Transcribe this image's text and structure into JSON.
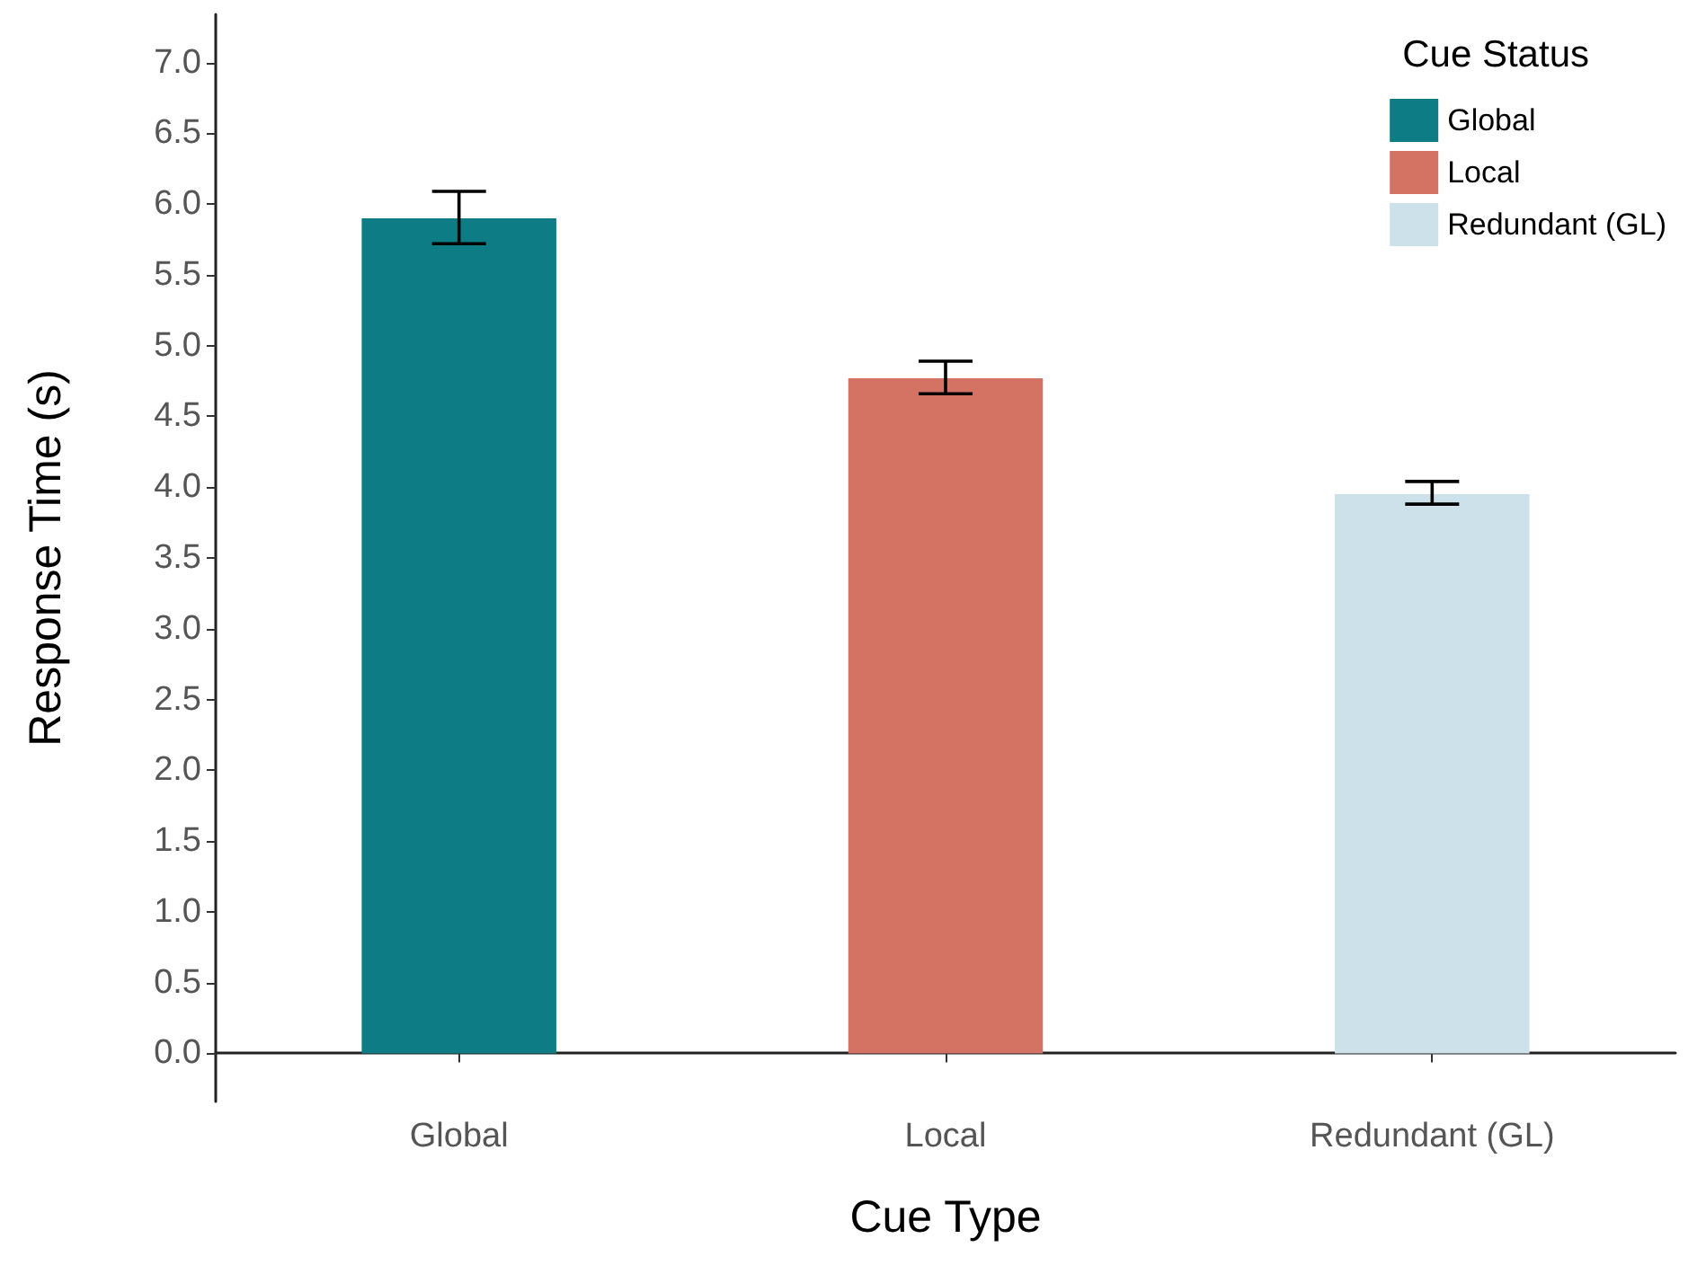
{
  "chart_data": {
    "type": "bar",
    "xlabel": "Cue Type",
    "ylabel": "Response Time (s)",
    "legend_title": "Cue Status",
    "legend": "top right",
    "categories": [
      "Global",
      "Local",
      "Redundant (GL)"
    ],
    "series": [
      {
        "name": "Global",
        "color": "#0e7c84",
        "values": [
          5.9,
          null,
          null
        ],
        "errors": [
          [
            5.72,
            6.09
          ],
          null,
          null
        ]
      },
      {
        "name": "Local",
        "color": "#d47363",
        "values": [
          null,
          4.77,
          null
        ],
        "errors": [
          null,
          [
            4.66,
            4.89
          ],
          null
        ]
      },
      {
        "name": "Redundant (GL)",
        "color": "#cde1eb",
        "values": [
          null,
          null,
          3.95
        ],
        "errors": [
          null,
          null,
          [
            3.88,
            4.04
          ]
        ]
      }
    ],
    "ylim": [
      -0.34,
      7.34
    ],
    "yticks": [
      {
        "value": 0,
        "label": "0.0"
      },
      {
        "value": 0.5,
        "label": "0.5"
      },
      {
        "value": 1,
        "label": "1.0"
      },
      {
        "value": 1.5,
        "label": "1.5"
      },
      {
        "value": 2,
        "label": "2.0"
      },
      {
        "value": 2.5,
        "label": "2.5"
      },
      {
        "value": 3,
        "label": "3.0"
      },
      {
        "value": 3.5,
        "label": "3.5"
      },
      {
        "value": 4,
        "label": "4.0"
      },
      {
        "value": 4.5,
        "label": "4.5"
      },
      {
        "value": 5,
        "label": "5.0"
      },
      {
        "value": 5.5,
        "label": "5.5"
      },
      {
        "value": 6,
        "label": "6.0"
      },
      {
        "value": 6.5,
        "label": "6.5"
      },
      {
        "value": 7,
        "label": "7.0"
      }
    ],
    "grid": false
  }
}
